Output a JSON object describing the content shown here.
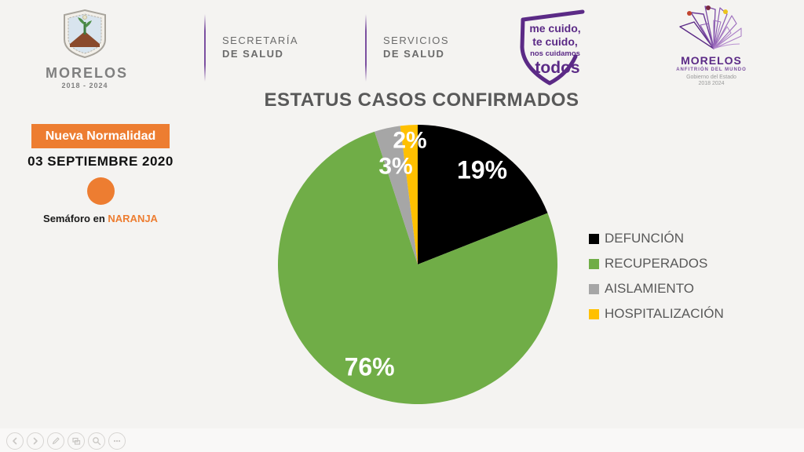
{
  "page": {
    "background": "#f4f3f1"
  },
  "header": {
    "crest": {
      "title": "MORELOS",
      "years": "2018 - 2024"
    },
    "secretaria": {
      "line1": "SECRETARÍA",
      "line2": "DE SALUD"
    },
    "servicios": {
      "line1": "SERVICIOS",
      "line2": "DE SALUD"
    },
    "pledge": {
      "line1": "me cuido,",
      "line2": "te cuido,",
      "line3": "nos cuidamos",
      "line4": "todos"
    },
    "state_logo": {
      "title": "MORELOS",
      "subtitle": "ANFITRIÓN DEL MUNDO",
      "line3": "Gobierno del Estado",
      "line4": "2018 2024"
    }
  },
  "status_panel": {
    "badge_label": "Nueva Normalidad",
    "date": "03 SEPTIEMBRE 2020",
    "semaforo_prefix": "Semáforo en ",
    "semaforo_value": "NARANJA"
  },
  "chart_data": {
    "type": "pie",
    "title": "ESTATUS CASOS CONFIRMADOS",
    "rotation": "clockwise-from-12-oclock",
    "slices": [
      {
        "label": "DEFUNCIÓN",
        "value_pct": 19,
        "color": "#000000",
        "data_label": "19%"
      },
      {
        "label": "RECUPERADOS",
        "value_pct": 76,
        "color": "#70AD47",
        "data_label": "76%"
      },
      {
        "label": "AISLAMIENTO",
        "value_pct": 3,
        "color": "#A6A6A6",
        "data_label": "3%"
      },
      {
        "label": "HOSPITALIZACIÓN",
        "value_pct": 2,
        "color": "#FFC000",
        "data_label": "2%"
      }
    ],
    "legend_position": "right"
  },
  "colors": {
    "accent_orange": "#ED7D31",
    "brand_purple": "#5B2A86",
    "text_gray": "#595959"
  },
  "controls": {
    "buttons": [
      "previous-slide",
      "next-slide",
      "pen",
      "slide-overview",
      "zoom",
      "more-options"
    ]
  }
}
